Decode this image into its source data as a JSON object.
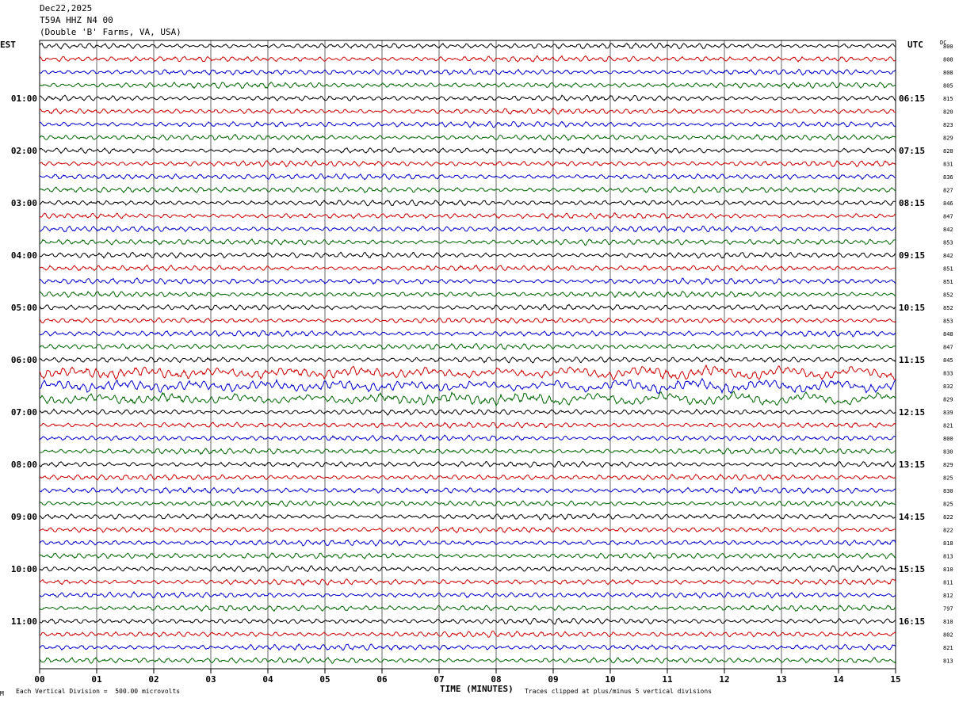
{
  "header": {
    "date": "Dec22,2025",
    "station": "T59A HHZ N4 00",
    "location": "(Double 'B' Farms, VA, USA)"
  },
  "left_axis_title": "EST",
  "right_axis_title": "UTC",
  "dc_label": "DC",
  "footer": {
    "scale_note": "Each Vertical Division =  500.00 microvolts",
    "clip_note": "Traces clipped at plus/minus 5 vertical divisions",
    "small_mark": "M"
  },
  "colors": {
    "trace_cycle": [
      "#000000",
      "#cc0000",
      "#0000cc",
      "#006600"
    ],
    "grid": "#000000"
  },
  "chart_data": {
    "type": "line",
    "title": "T59A HHZ N4 00",
    "xlabel": "TIME (MINUTES)",
    "x_ticks": [
      "00",
      "01",
      "02",
      "03",
      "04",
      "05",
      "06",
      "07",
      "08",
      "09",
      "10",
      "11",
      "12",
      "13",
      "14",
      "15"
    ],
    "xlim": [
      0,
      15
    ],
    "traces_per_hour": 4,
    "left_hour_labels": [
      "",
      "01:00",
      "02:00",
      "03:00",
      "04:00",
      "05:00",
      "06:00",
      "07:00",
      "08:00",
      "09:00",
      "10:00",
      "11:00"
    ],
    "right_hour_labels": [
      "",
      "06:15",
      "07:15",
      "08:15",
      "09:15",
      "10:15",
      "11:15",
      "12:15",
      "13:15",
      "14:15",
      "15:15",
      "16:15"
    ],
    "dc_offsets": [
      800,
      808,
      808,
      805,
      815,
      820,
      823,
      829,
      828,
      831,
      836,
      827,
      846,
      847,
      842,
      853,
      842,
      851,
      851,
      852,
      852,
      853,
      848,
      847,
      845,
      833,
      832,
      829,
      839,
      821,
      800,
      830,
      829,
      825,
      830,
      825,
      822,
      822,
      818,
      813,
      810,
      811,
      812,
      797,
      810,
      802,
      821,
      813
    ],
    "noisy_trace_indices": [
      25,
      26,
      27
    ]
  }
}
